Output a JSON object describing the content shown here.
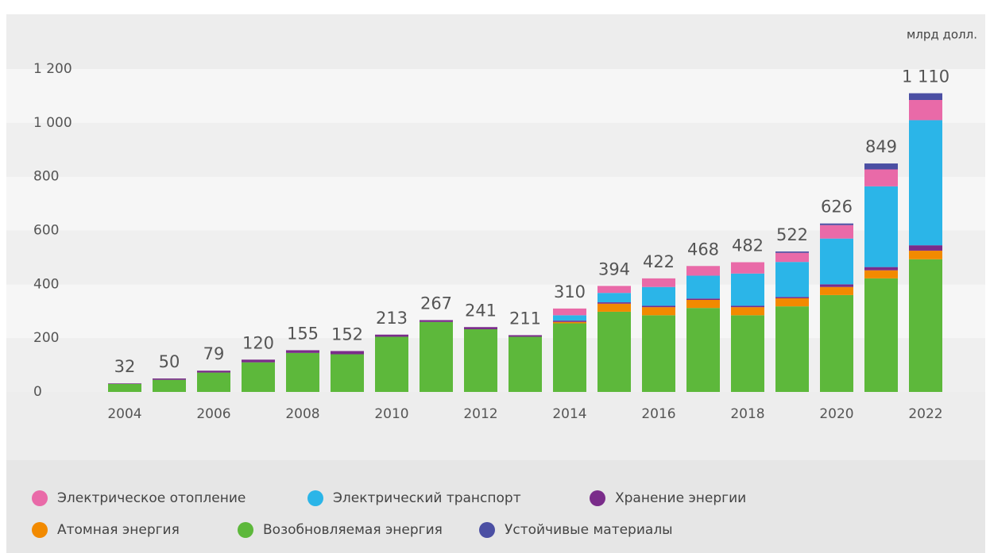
{
  "chart_data": {
    "type": "stacked-bar",
    "unit_label": "млрд долл.",
    "categories": [
      2004,
      null,
      2006,
      null,
      2008,
      null,
      2010,
      null,
      2012,
      null,
      2014,
      null,
      2016,
      null,
      2018,
      null,
      2020,
      null,
      2022
    ],
    "series": [
      {
        "name": "Электрическое отопление",
        "color": "#e96aa8",
        "values": [
          0,
          0,
          0,
          0,
          0,
          0,
          0,
          0,
          0,
          0,
          25,
          26,
          32,
          36,
          42,
          34,
          50,
          63,
          75
        ]
      },
      {
        "name": "Электрический транспорт",
        "color": "#2bb5e8",
        "values": [
          0,
          0,
          0,
          0,
          0,
          0,
          0,
          0,
          0,
          0,
          20,
          35,
          70,
          85,
          120,
          130,
          170,
          300,
          465
        ]
      },
      {
        "name": "Хранение энергии",
        "color": "#7a2c8a",
        "values": [
          2,
          5,
          7,
          10,
          10,
          12,
          8,
          7,
          8,
          6,
          5,
          5,
          5,
          5,
          5,
          5,
          10,
          12,
          20
        ]
      },
      {
        "name": "Атомная энергия",
        "color": "#f28a00",
        "values": [
          0,
          0,
          0,
          0,
          0,
          0,
          0,
          0,
          0,
          0,
          5,
          30,
          30,
          30,
          30,
          30,
          30,
          30,
          32
        ]
      },
      {
        "name": "Возобновляемая энергия",
        "color": "#5db83b",
        "values": [
          30,
          45,
          72,
          110,
          145,
          140,
          205,
          260,
          233,
          205,
          255,
          298,
          285,
          312,
          285,
          318,
          360,
          422,
          493
        ]
      },
      {
        "name": "Устойчивые материалы",
        "color": "#4b4fa3",
        "values": [
          0,
          0,
          0,
          0,
          0,
          0,
          0,
          0,
          0,
          0,
          0,
          0,
          0,
          0,
          0,
          5,
          6,
          22,
          25
        ]
      }
    ],
    "totals": [
      32,
      50,
      79,
      120,
      155,
      152,
      213,
      267,
      241,
      211,
      310,
      394,
      422,
      468,
      482,
      522,
      626,
      849,
      1110
    ],
    "total_labels": [
      "32",
      "50",
      "79",
      "120",
      "155",
      "152",
      "213",
      "267",
      "241",
      "211",
      "310",
      "394",
      "422",
      "468",
      "482",
      "522",
      "626",
      "849",
      "1 110"
    ],
    "ylim": [
      0,
      1200
    ],
    "yticks": [
      0,
      200,
      400,
      600,
      800,
      {
        "value": 1000,
        "label": "1 000"
      },
      {
        "value": 1200,
        "label": "1 200"
      }
    ],
    "grid": "bands"
  }
}
